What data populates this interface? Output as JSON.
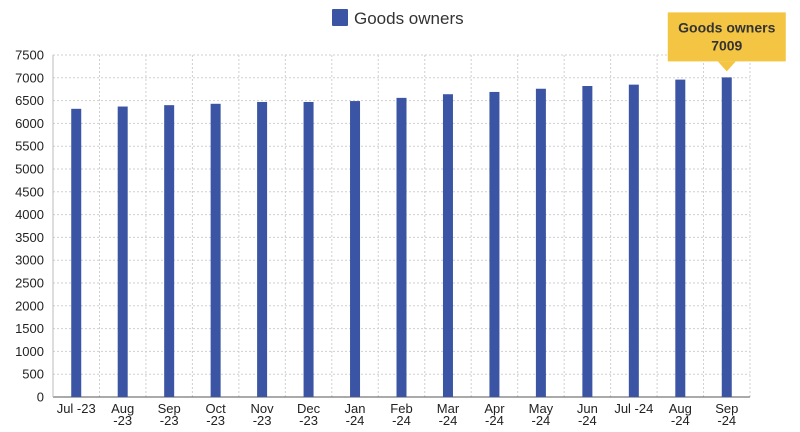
{
  "chart_data": {
    "type": "bar",
    "categories": [
      [
        "Jul -23"
      ],
      [
        "Aug",
        "-23"
      ],
      [
        "Sep",
        "-23"
      ],
      [
        "Oct",
        "-23"
      ],
      [
        "Nov",
        "-23"
      ],
      [
        "Dec",
        "-23"
      ],
      [
        "Jan",
        "-24"
      ],
      [
        "Feb",
        "-24"
      ],
      [
        "Mar",
        "-24"
      ],
      [
        "Apr",
        "-24"
      ],
      [
        "May",
        "-24"
      ],
      [
        "Jun",
        "-24"
      ],
      [
        "Jul -24"
      ],
      [
        "Aug",
        "-24"
      ],
      [
        "Sep",
        "-24"
      ]
    ],
    "series": [
      {
        "name": "Goods owners",
        "color": "#3b55a4",
        "values": [
          6320,
          6370,
          6400,
          6430,
          6470,
          6470,
          6490,
          6560,
          6640,
          6690,
          6760,
          6820,
          6850,
          6960,
          7009
        ]
      }
    ],
    "ylim": [
      0,
      7500
    ],
    "yticks": [
      0,
      500,
      1000,
      1500,
      2000,
      2500,
      3000,
      3500,
      4000,
      4500,
      5000,
      5500,
      6000,
      6500,
      7000,
      7500
    ],
    "grid": true,
    "legend_position": "top-center",
    "tooltip": {
      "series": "Goods owners",
      "value": "7009",
      "category_index": 14,
      "background": "#f4c542"
    }
  }
}
